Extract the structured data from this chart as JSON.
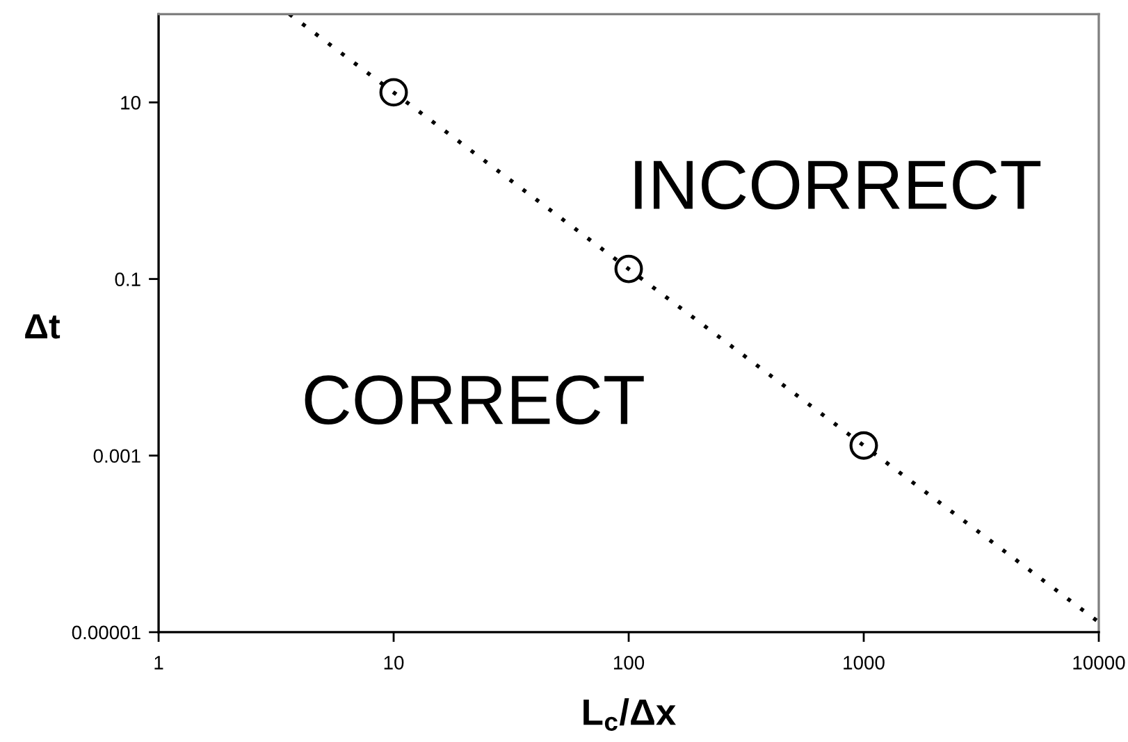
{
  "chart_data": {
    "type": "scatter",
    "xlabel": "L$_{c}$/Δx",
    "ylabel": "Δt",
    "annotations": [
      "INCORRECT",
      "CORRECT"
    ],
    "series": [
      {
        "x": [
          10,
          100,
          1000
        ],
        "values": [
          13,
          0.13,
          0.0013
        ],
        "color": "#000000",
        "marker": "circle"
      },
      {
        "type": "line",
        "x": [
          3.6,
          10000
        ],
        "values": [
          100,
          1.3e-05
        ],
        "color": "#000000",
        "line_style": "dotted",
        "marker": "none"
      }
    ],
    "log": "xy",
    "xlim": [
      1,
      10000
    ],
    "ylim": [
      1e-05,
      100
    ],
    "xticks": [
      1,
      10,
      100,
      1000,
      10000
    ],
    "yticks": [
      10,
      0.1,
      0.001,
      {
        "value": 1e-05,
        "label": "0.00001"
      }
    ]
  }
}
